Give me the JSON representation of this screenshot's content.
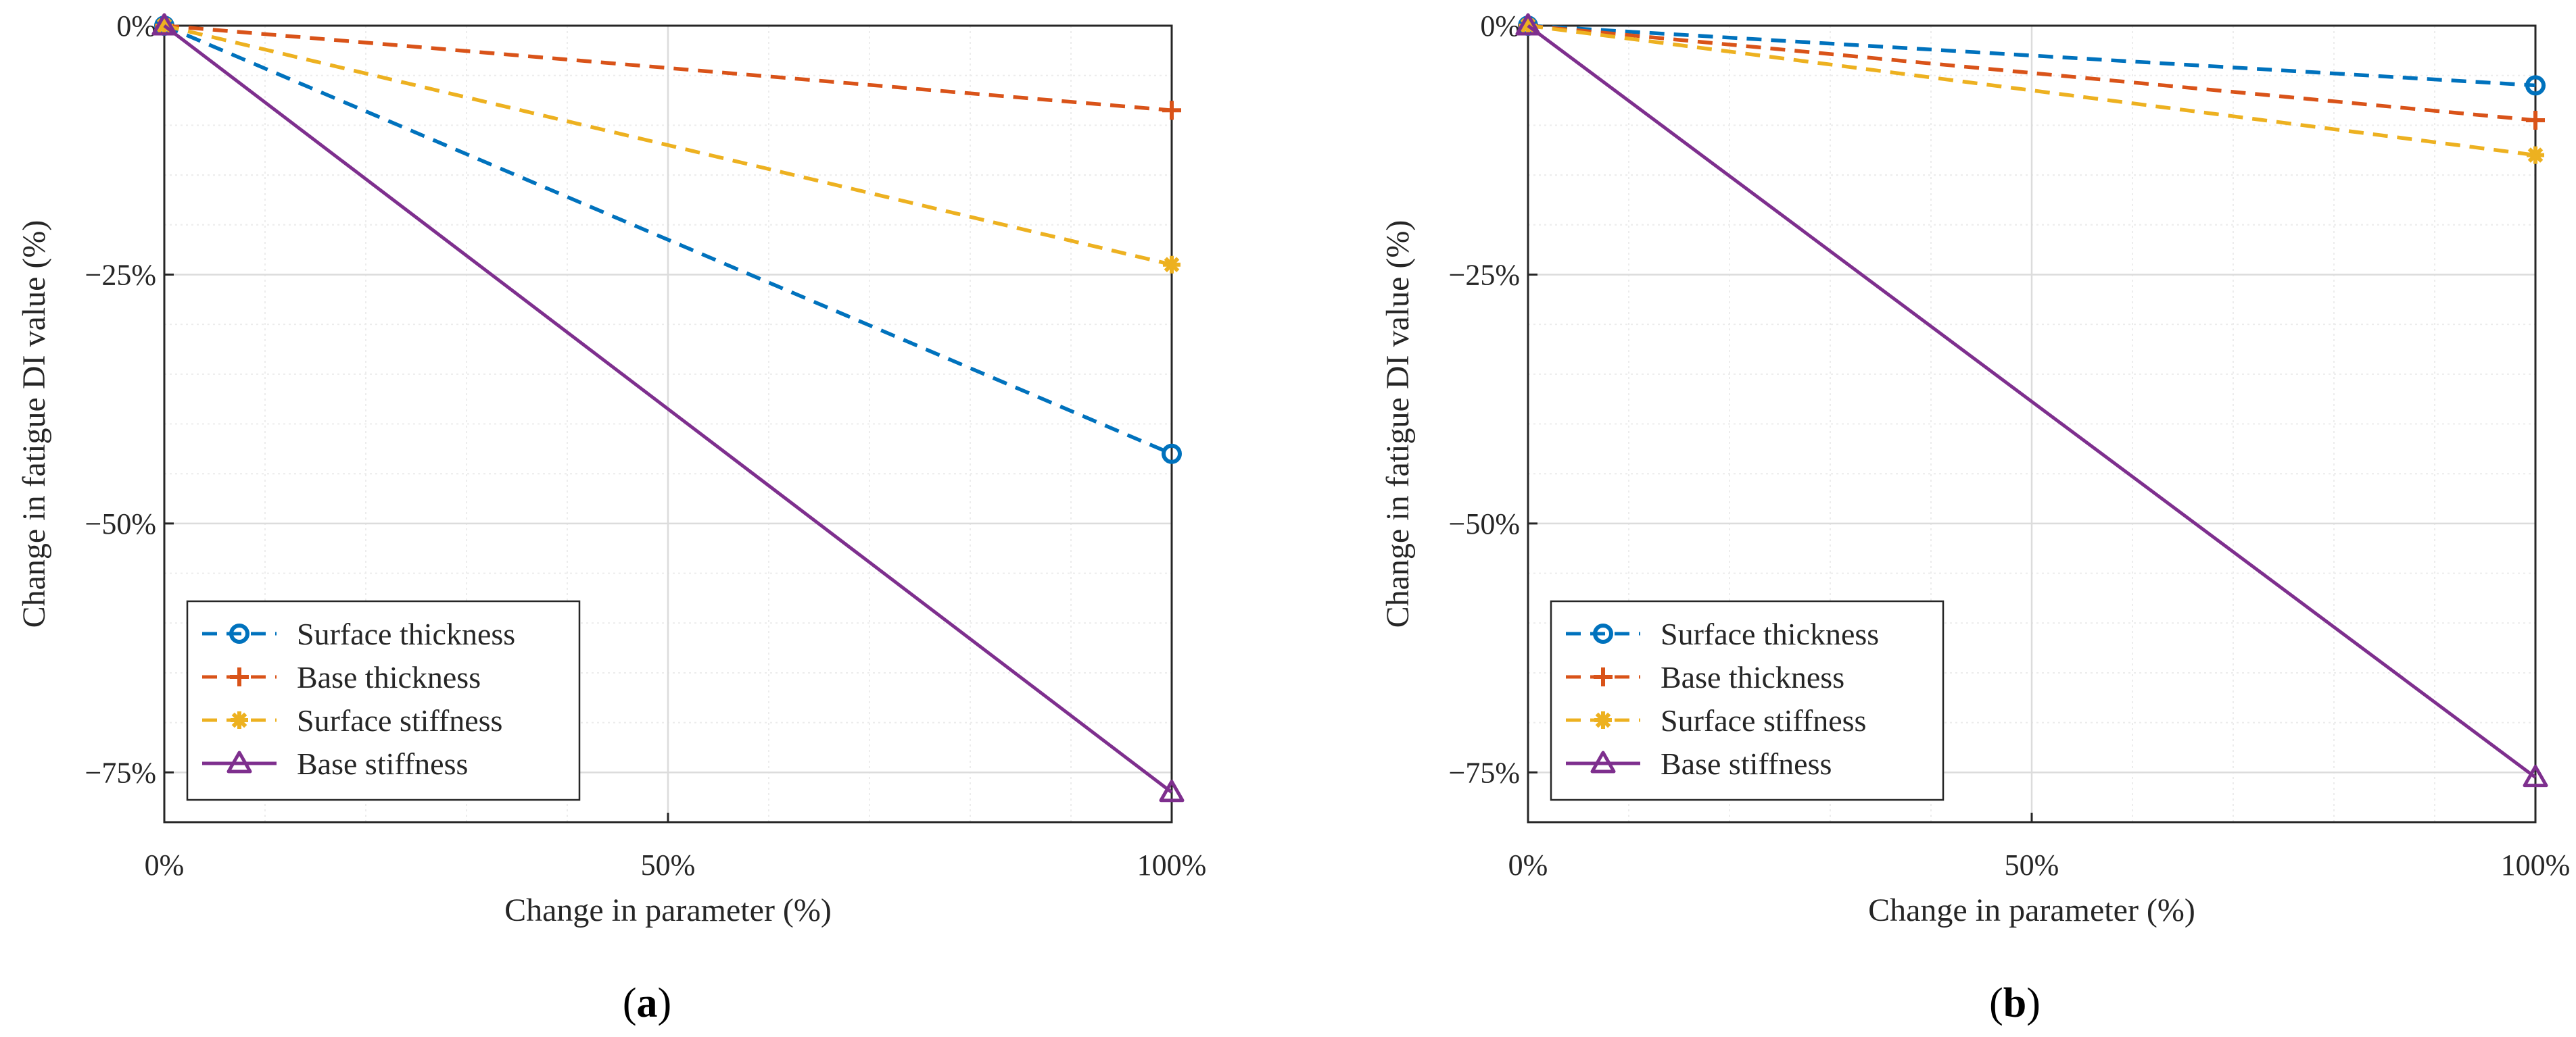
{
  "colors": {
    "surface_thickness": "#0072BD",
    "base_thickness": "#D95319",
    "surface_stiffness": "#EDB120",
    "base_stiffness": "#7E2F8E",
    "grid": "#dcdcdc",
    "axis": "#262626"
  },
  "chart_data": [
    {
      "type": "line",
      "panel": "a",
      "caption": {
        "open": "(",
        "letter": "a",
        "close": ")"
      },
      "xlabel": "Change in parameter (%)",
      "ylabel": "Change in fatigue DI value (%)",
      "xlim": [
        0,
        100
      ],
      "ylim": [
        -80,
        0
      ],
      "xticks": [
        0,
        50,
        100
      ],
      "xticklabels": [
        "0%",
        "50%",
        "100%"
      ],
      "yticks": [
        0,
        -25,
        -50,
        -75
      ],
      "yticklabels": [
        "0%",
        "−25%",
        "−50%",
        "−75%"
      ],
      "grid": true,
      "minor_grid": true,
      "legend_location": "lower-left",
      "x": [
        0,
        100
      ],
      "series": [
        {
          "name": "Surface thickness",
          "key": "surface_thickness",
          "marker": "circle",
          "dashed": true,
          "values": [
            0,
            -43
          ]
        },
        {
          "name": "Base thickness",
          "key": "base_thickness",
          "marker": "plus",
          "dashed": true,
          "values": [
            0,
            -8.5
          ]
        },
        {
          "name": "Surface stiffness",
          "key": "surface_stiffness",
          "marker": "asterisk",
          "dashed": true,
          "values": [
            0,
            -24
          ]
        },
        {
          "name": "Base stiffness",
          "key": "base_stiffness",
          "marker": "triangle",
          "dashed": false,
          "values": [
            0,
            -77
          ]
        }
      ]
    },
    {
      "type": "line",
      "panel": "b",
      "caption": {
        "open": "(",
        "letter": "b",
        "close": ")"
      },
      "xlabel": "Change in parameter (%)",
      "ylabel": "Change in fatigue DI value (%)",
      "xlim": [
        0,
        100
      ],
      "ylim": [
        -80,
        0
      ],
      "xticks": [
        0,
        50,
        100
      ],
      "xticklabels": [
        "0%",
        "50%",
        "100%"
      ],
      "yticks": [
        0,
        -25,
        -50,
        -75
      ],
      "yticklabels": [
        "0%",
        "−25%",
        "−50%",
        "−75%"
      ],
      "grid": true,
      "minor_grid": true,
      "legend_location": "lower-left",
      "x": [
        0,
        100
      ],
      "series": [
        {
          "name": "Surface thickness",
          "key": "surface_thickness",
          "marker": "circle",
          "dashed": true,
          "values": [
            0,
            -6
          ]
        },
        {
          "name": "Base thickness",
          "key": "base_thickness",
          "marker": "plus",
          "dashed": true,
          "values": [
            0,
            -9.5
          ]
        },
        {
          "name": "Surface stiffness",
          "key": "surface_stiffness",
          "marker": "asterisk",
          "dashed": true,
          "values": [
            0,
            -13
          ]
        },
        {
          "name": "Base stiffness",
          "key": "base_stiffness",
          "marker": "triangle",
          "dashed": false,
          "values": [
            0,
            -75.5
          ]
        }
      ]
    }
  ]
}
